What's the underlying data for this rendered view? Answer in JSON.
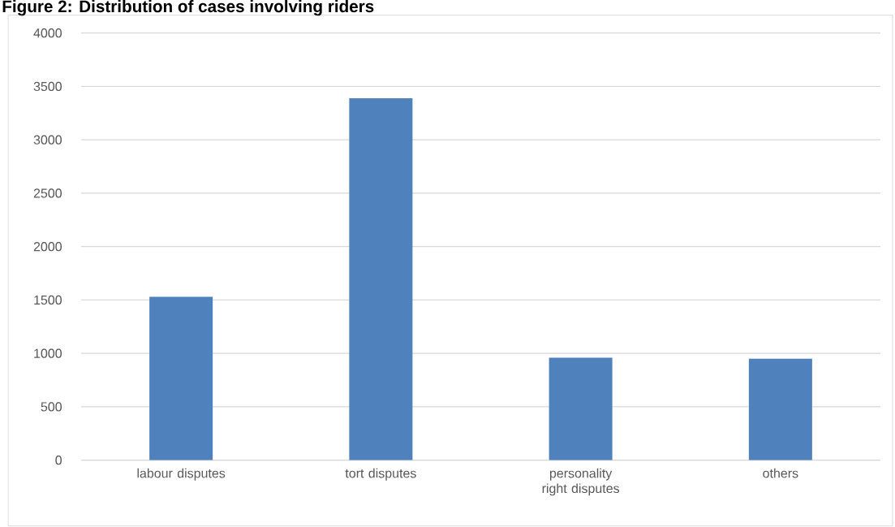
{
  "chart_data": {
    "type": "bar",
    "title": "Figure 2: Distribution of cases involving riders",
    "categories": [
      "labour disputes",
      "tort disputes",
      "personality right disputes",
      "others"
    ],
    "values": [
      1530,
      3390,
      960,
      950
    ],
    "color": "#4f81bd",
    "ylim": [
      0,
      4000
    ],
    "yticks": [
      0,
      500,
      1000,
      1500,
      2000,
      2500,
      3000,
      3500,
      4000
    ],
    "grid": "y"
  }
}
